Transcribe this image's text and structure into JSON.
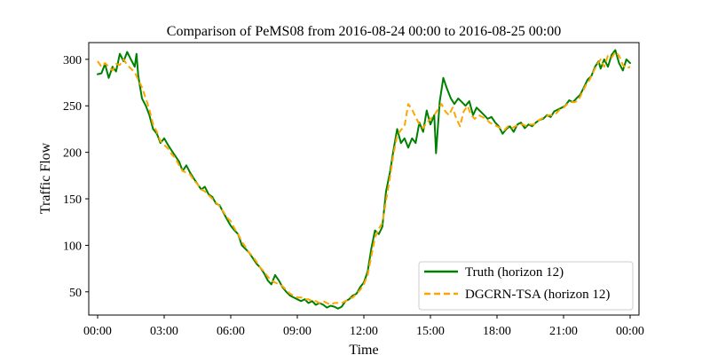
{
  "chart_data": {
    "type": "line",
    "title": "Comparison of PeMS08 from 2016-08-24 00:00 to 2016-08-25 00:00",
    "xlabel": "Time",
    "ylabel": "Traffic Flow",
    "x_unit": "hours since 2016-08-24 00:00",
    "xlim": [
      -0.4,
      24.4
    ],
    "ylim": [
      25,
      318
    ],
    "x_ticks": [
      0,
      3,
      6,
      9,
      12,
      15,
      18,
      21,
      24
    ],
    "x_tick_labels": [
      "00:00",
      "03:00",
      "06:00",
      "09:00",
      "12:00",
      "15:00",
      "18:00",
      "21:00",
      "00:00"
    ],
    "y_ticks": [
      50,
      100,
      150,
      200,
      250,
      300
    ],
    "y_tick_labels": [
      "50",
      "100",
      "150",
      "200",
      "250",
      "300"
    ],
    "grid": false,
    "legend_position": "lower-right",
    "series": [
      {
        "name": "Truth (horizon 12)",
        "color": "#008000",
        "dash": "solid",
        "points": [
          [
            0.0,
            284
          ],
          [
            0.17,
            285
          ],
          [
            0.33,
            295
          ],
          [
            0.5,
            280
          ],
          [
            0.67,
            292
          ],
          [
            0.83,
            287
          ],
          [
            1.0,
            306
          ],
          [
            1.17,
            298
          ],
          [
            1.33,
            308
          ],
          [
            1.5,
            300
          ],
          [
            1.67,
            292
          ],
          [
            1.75,
            306
          ],
          [
            1.83,
            282
          ],
          [
            2.0,
            258
          ],
          [
            2.17,
            250
          ],
          [
            2.33,
            240
          ],
          [
            2.5,
            225
          ],
          [
            2.67,
            220
          ],
          [
            2.83,
            210
          ],
          [
            3.0,
            215
          ],
          [
            3.17,
            208
          ],
          [
            3.33,
            202
          ],
          [
            3.5,
            196
          ],
          [
            3.67,
            190
          ],
          [
            3.83,
            180
          ],
          [
            4.0,
            186
          ],
          [
            4.17,
            178
          ],
          [
            4.33,
            172
          ],
          [
            4.5,
            166
          ],
          [
            4.67,
            160
          ],
          [
            4.83,
            163
          ],
          [
            5.0,
            155
          ],
          [
            5.17,
            152
          ],
          [
            5.33,
            145
          ],
          [
            5.5,
            143
          ],
          [
            5.67,
            135
          ],
          [
            5.83,
            128
          ],
          [
            6.0,
            121
          ],
          [
            6.17,
            116
          ],
          [
            6.33,
            112
          ],
          [
            6.5,
            100
          ],
          [
            6.67,
            96
          ],
          [
            6.83,
            92
          ],
          [
            7.0,
            86
          ],
          [
            7.17,
            80
          ],
          [
            7.33,
            76
          ],
          [
            7.5,
            70
          ],
          [
            7.67,
            62
          ],
          [
            7.83,
            58
          ],
          [
            8.0,
            68
          ],
          [
            8.17,
            62
          ],
          [
            8.33,
            55
          ],
          [
            8.5,
            50
          ],
          [
            8.67,
            46
          ],
          [
            8.83,
            44
          ],
          [
            9.0,
            42
          ],
          [
            9.17,
            40
          ],
          [
            9.33,
            42
          ],
          [
            9.5,
            38
          ],
          [
            9.67,
            40
          ],
          [
            9.83,
            36
          ],
          [
            10.0,
            38
          ],
          [
            10.17,
            36
          ],
          [
            10.33,
            33
          ],
          [
            10.5,
            35
          ],
          [
            10.67,
            34
          ],
          [
            10.83,
            32
          ],
          [
            11.0,
            34
          ],
          [
            11.17,
            40
          ],
          [
            11.33,
            42
          ],
          [
            11.5,
            46
          ],
          [
            11.67,
            48
          ],
          [
            11.83,
            55
          ],
          [
            12.0,
            60
          ],
          [
            12.17,
            72
          ],
          [
            12.33,
            96
          ],
          [
            12.5,
            116
          ],
          [
            12.67,
            112
          ],
          [
            12.83,
            120
          ],
          [
            13.0,
            158
          ],
          [
            13.17,
            178
          ],
          [
            13.33,
            202
          ],
          [
            13.5,
            225
          ],
          [
            13.67,
            210
          ],
          [
            13.83,
            215
          ],
          [
            14.0,
            205
          ],
          [
            14.17,
            215
          ],
          [
            14.33,
            210
          ],
          [
            14.5,
            232
          ],
          [
            14.67,
            222
          ],
          [
            14.83,
            245
          ],
          [
            15.0,
            230
          ],
          [
            15.17,
            240
          ],
          [
            15.25,
            199
          ],
          [
            15.42,
            255
          ],
          [
            15.58,
            280
          ],
          [
            15.75,
            268
          ],
          [
            15.92,
            258
          ],
          [
            16.08,
            252
          ],
          [
            16.25,
            258
          ],
          [
            16.42,
            254
          ],
          [
            16.58,
            250
          ],
          [
            16.75,
            255
          ],
          [
            16.92,
            240
          ],
          [
            17.08,
            248
          ],
          [
            17.25,
            244
          ],
          [
            17.42,
            240
          ],
          [
            17.58,
            236
          ],
          [
            17.75,
            238
          ],
          [
            17.92,
            232
          ],
          [
            18.08,
            228
          ],
          [
            18.25,
            220
          ],
          [
            18.42,
            225
          ],
          [
            18.58,
            228
          ],
          [
            18.75,
            222
          ],
          [
            18.92,
            230
          ],
          [
            19.08,
            232
          ],
          [
            19.25,
            226
          ],
          [
            19.42,
            230
          ],
          [
            19.58,
            228
          ],
          [
            19.75,
            232
          ],
          [
            19.92,
            235
          ],
          [
            20.08,
            236
          ],
          [
            20.25,
            240
          ],
          [
            20.42,
            238
          ],
          [
            20.58,
            244
          ],
          [
            20.75,
            246
          ],
          [
            20.92,
            248
          ],
          [
            21.08,
            250
          ],
          [
            21.25,
            256
          ],
          [
            21.42,
            254
          ],
          [
            21.58,
            258
          ],
          [
            21.75,
            262
          ],
          [
            21.92,
            270
          ],
          [
            22.08,
            278
          ],
          [
            22.25,
            282
          ],
          [
            22.42,
            292
          ],
          [
            22.58,
            298
          ],
          [
            22.67,
            290
          ],
          [
            22.83,
            300
          ],
          [
            23.0,
            292
          ],
          [
            23.17,
            305
          ],
          [
            23.33,
            310
          ],
          [
            23.5,
            296
          ],
          [
            23.67,
            288
          ],
          [
            23.83,
            300
          ],
          [
            24.0,
            296
          ]
        ]
      },
      {
        "name": "DGCRN-TSA (horizon 12)",
        "color": "#FFA500",
        "dash": "dashed",
        "points": [
          [
            0.0,
            298
          ],
          [
            0.17,
            292
          ],
          [
            0.33,
            296
          ],
          [
            0.5,
            292
          ],
          [
            0.67,
            288
          ],
          [
            0.83,
            295
          ],
          [
            1.0,
            294
          ],
          [
            1.17,
            300
          ],
          [
            1.33,
            294
          ],
          [
            1.5,
            290
          ],
          [
            1.67,
            286
          ],
          [
            1.83,
            278
          ],
          [
            2.0,
            270
          ],
          [
            2.17,
            258
          ],
          [
            2.33,
            246
          ],
          [
            2.5,
            230
          ],
          [
            2.67,
            222
          ],
          [
            2.83,
            212
          ],
          [
            3.0,
            208
          ],
          [
            3.17,
            204
          ],
          [
            3.33,
            198
          ],
          [
            3.5,
            194
          ],
          [
            3.67,
            186
          ],
          [
            3.83,
            180
          ],
          [
            4.0,
            178
          ],
          [
            4.17,
            176
          ],
          [
            4.33,
            170
          ],
          [
            4.5,
            166
          ],
          [
            4.67,
            160
          ],
          [
            4.83,
            158
          ],
          [
            5.0,
            154
          ],
          [
            5.17,
            150
          ],
          [
            5.33,
            146
          ],
          [
            5.5,
            142
          ],
          [
            5.67,
            136
          ],
          [
            5.83,
            130
          ],
          [
            6.0,
            126
          ],
          [
            6.17,
            118
          ],
          [
            6.33,
            112
          ],
          [
            6.5,
            104
          ],
          [
            6.67,
            98
          ],
          [
            6.83,
            92
          ],
          [
            7.0,
            88
          ],
          [
            7.17,
            82
          ],
          [
            7.33,
            76
          ],
          [
            7.5,
            72
          ],
          [
            7.67,
            66
          ],
          [
            7.83,
            62
          ],
          [
            8.0,
            60
          ],
          [
            8.17,
            58
          ],
          [
            8.33,
            56
          ],
          [
            8.5,
            52
          ],
          [
            8.67,
            48
          ],
          [
            8.83,
            46
          ],
          [
            9.0,
            44
          ],
          [
            9.17,
            44
          ],
          [
            9.33,
            42
          ],
          [
            9.5,
            42
          ],
          [
            9.67,
            40
          ],
          [
            9.83,
            40
          ],
          [
            10.0,
            38
          ],
          [
            10.17,
            40
          ],
          [
            10.33,
            38
          ],
          [
            10.5,
            36
          ],
          [
            10.67,
            38
          ],
          [
            10.83,
            38
          ],
          [
            11.0,
            38
          ],
          [
            11.17,
            40
          ],
          [
            11.33,
            42
          ],
          [
            11.5,
            44
          ],
          [
            11.67,
            48
          ],
          [
            11.83,
            52
          ],
          [
            12.0,
            58
          ],
          [
            12.17,
            68
          ],
          [
            12.33,
            88
          ],
          [
            12.5,
            108
          ],
          [
            12.67,
            118
          ],
          [
            12.83,
            124
          ],
          [
            13.0,
            148
          ],
          [
            13.17,
            172
          ],
          [
            13.33,
            198
          ],
          [
            13.5,
            218
          ],
          [
            13.67,
            224
          ],
          [
            13.83,
            228
          ],
          [
            14.0,
            252
          ],
          [
            14.17,
            246
          ],
          [
            14.33,
            238
          ],
          [
            14.5,
            230
          ],
          [
            14.67,
            226
          ],
          [
            14.83,
            232
          ],
          [
            15.0,
            236
          ],
          [
            15.17,
            240
          ],
          [
            15.33,
            246
          ],
          [
            15.5,
            252
          ],
          [
            15.67,
            244
          ],
          [
            15.83,
            240
          ],
          [
            16.0,
            248
          ],
          [
            16.17,
            236
          ],
          [
            16.33,
            228
          ],
          [
            16.5,
            244
          ],
          [
            16.67,
            250
          ],
          [
            16.83,
            240
          ],
          [
            17.0,
            236
          ],
          [
            17.17,
            240
          ],
          [
            17.33,
            238
          ],
          [
            17.5,
            236
          ],
          [
            17.67,
            232
          ],
          [
            17.83,
            230
          ],
          [
            18.0,
            228
          ],
          [
            18.17,
            226
          ],
          [
            18.33,
            224
          ],
          [
            18.5,
            228
          ],
          [
            18.67,
            226
          ],
          [
            18.83,
            228
          ],
          [
            19.0,
            230
          ],
          [
            19.17,
            230
          ],
          [
            19.33,
            228
          ],
          [
            19.5,
            230
          ],
          [
            19.67,
            230
          ],
          [
            19.83,
            234
          ],
          [
            20.0,
            236
          ],
          [
            20.17,
            238
          ],
          [
            20.33,
            240
          ],
          [
            20.5,
            240
          ],
          [
            20.67,
            242
          ],
          [
            20.83,
            246
          ],
          [
            21.0,
            248
          ],
          [
            21.17,
            252
          ],
          [
            21.33,
            254
          ],
          [
            21.5,
            254
          ],
          [
            21.67,
            256
          ],
          [
            21.83,
            264
          ],
          [
            22.0,
            272
          ],
          [
            22.17,
            278
          ],
          [
            22.33,
            286
          ],
          [
            22.5,
            294
          ],
          [
            22.67,
            300
          ],
          [
            22.83,
            292
          ],
          [
            23.0,
            304
          ],
          [
            23.17,
            302
          ],
          [
            23.33,
            308
          ],
          [
            23.5,
            304
          ],
          [
            23.67,
            294
          ],
          [
            23.83,
            290
          ],
          [
            24.0,
            292
          ]
        ]
      }
    ]
  }
}
